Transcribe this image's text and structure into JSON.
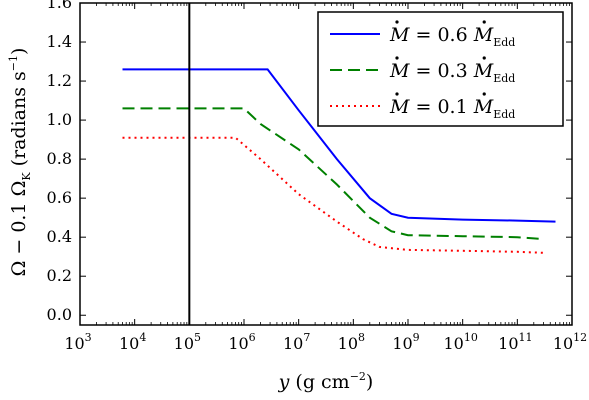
{
  "chart_data": {
    "type": "line",
    "xscale": "log",
    "xlim": [
      1000,
      1000000000000
    ],
    "ylim": [
      -0.05,
      1.6
    ],
    "xlabel": "y (g cm−2)",
    "ylabel": "Ω − 0.1 ΩK (radians s−1)",
    "x_ticks": [
      {
        "base": "10",
        "exp": "3",
        "value": 1000
      },
      {
        "base": "10",
        "exp": "4",
        "value": 10000
      },
      {
        "base": "10",
        "exp": "5",
        "value": 100000
      },
      {
        "base": "10",
        "exp": "6",
        "value": 1000000
      },
      {
        "base": "10",
        "exp": "7",
        "value": 10000000
      },
      {
        "base": "10",
        "exp": "8",
        "value": 100000000
      },
      {
        "base": "10",
        "exp": "9",
        "value": 1000000000
      },
      {
        "base": "10",
        "exp": "10",
        "value": 10000000000
      },
      {
        "base": "10",
        "exp": "11",
        "value": 100000000000
      },
      {
        "base": "10",
        "exp": "12",
        "value": 1000000000000
      }
    ],
    "y_ticks": [
      "0.0",
      "0.2",
      "0.4",
      "0.6",
      "0.8",
      "1.0",
      "1.2",
      "1.4",
      "1.6"
    ],
    "vline": {
      "x": 100000,
      "color": "#000000"
    },
    "legend_position": "top-right",
    "series": [
      {
        "name": "Ṁ = 0.6 ṀEdd",
        "legend_lhs": "M",
        "legend_coef": "= 0.6",
        "legend_rhs": "M",
        "legend_sub": "Edd",
        "color": "#0000ff",
        "style": "solid",
        "x": [
          6000,
          100000,
          1000000,
          2700000,
          10000000,
          50000000,
          200000000,
          500000000,
          1000000000,
          10000000000,
          100000000000,
          500000000000
        ],
        "y": [
          1.26,
          1.26,
          1.26,
          1.26,
          1.05,
          0.8,
          0.6,
          0.52,
          0.5,
          0.49,
          0.485,
          0.48
        ]
      },
      {
        "name": "Ṁ = 0.3 ṀEdd",
        "legend_lhs": "M",
        "legend_coef": "= 0.3",
        "legend_rhs": "M",
        "legend_sub": "Edd",
        "color": "#008000",
        "style": "dashed",
        "x": [
          6000,
          100000,
          1000000,
          2000000,
          10000000,
          50000000,
          200000000,
          500000000,
          1000000000,
          10000000000,
          100000000000,
          300000000000
        ],
        "y": [
          1.06,
          1.06,
          1.06,
          0.98,
          0.85,
          0.67,
          0.5,
          0.43,
          0.41,
          0.405,
          0.4,
          0.39
        ]
      },
      {
        "name": "Ṁ = 0.1 ṀEdd",
        "legend_lhs": "M",
        "legend_coef": "= 0.1",
        "legend_rhs": "M",
        "legend_sub": "Edd",
        "color": "#ff0000",
        "style": "dotted",
        "x": [
          6000,
          100000,
          700000,
          2000000,
          10000000,
          50000000,
          150000000,
          300000000,
          1000000000,
          10000000000,
          100000000000,
          300000000000
        ],
        "y": [
          0.91,
          0.91,
          0.91,
          0.8,
          0.62,
          0.48,
          0.39,
          0.35,
          0.335,
          0.33,
          0.325,
          0.32
        ]
      }
    ]
  }
}
